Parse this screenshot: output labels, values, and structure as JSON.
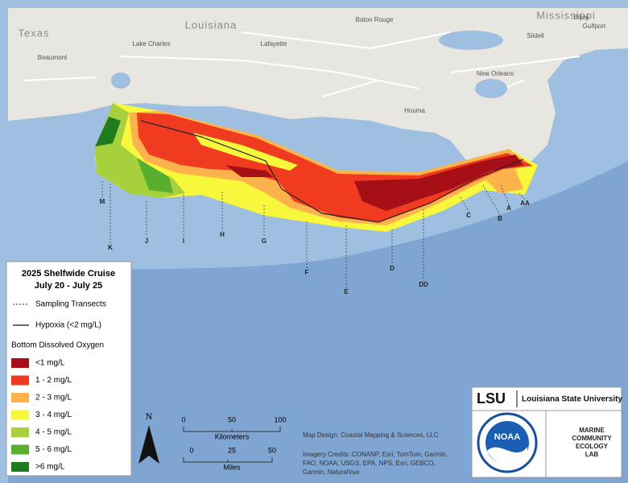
{
  "places": [
    {
      "label": "Texas"
    },
    {
      "label": "Louisiana"
    },
    {
      "label": "Mississippi"
    },
    {
      "label": "Baton Rouge"
    },
    {
      "label": "Lake Charles"
    },
    {
      "label": "Lafayette"
    },
    {
      "label": "Beaumont"
    },
    {
      "label": "Houma"
    },
    {
      "label": "New Orleans"
    },
    {
      "label": "Slidell"
    },
    {
      "label": "Biloxi"
    },
    {
      "label": "Gulfport"
    }
  ],
  "transects": [
    "M",
    "K",
    "J",
    "I",
    "H",
    "G",
    "F",
    "E",
    "D",
    "DD",
    "C",
    "B",
    "A",
    "AA"
  ],
  "legend": {
    "title": "2025 Shelfwide Cruise",
    "dates": "July 20 - July 25",
    "transect_label": "Sampling Transects",
    "hypoxia_label": "Hypoxia (<2 mg/L)",
    "oxygen_title": "Bottom Dissolved Oxygen",
    "classes": [
      {
        "label": "<1 mg/L",
        "color": "#a50f15"
      },
      {
        "label": "1 - 2 mg/L",
        "color": "#f03b20"
      },
      {
        "label": "2 - 3 mg/L",
        "color": "#feb24c"
      },
      {
        "label": "3 - 4 mg/L",
        "color": "#f7f73c"
      },
      {
        "label": "4 - 5 mg/L",
        "color": "#a6d13c"
      },
      {
        "label": "5 - 6 mg/L",
        "color": "#5aae2e"
      },
      {
        "label": ">6 mg/L",
        "color": "#1e7b1e"
      }
    ]
  },
  "north": "N",
  "scale_km": {
    "ticks": [
      "0",
      "50",
      "100"
    ],
    "unit": "Kilometers"
  },
  "scale_mi": {
    "ticks": [
      "0",
      "25",
      "50"
    ],
    "unit": "Miles"
  },
  "credits": {
    "design": "Map Design: Coastal Mapping & Sciences, LLC",
    "imagery": [
      "Imagery Credits: CONANP, Esri, TomTom, Garmin,",
      "FAO, NOAA, USGS, EPA, NPS, Esri, GEBCO,",
      "Garmin, NaturalVue"
    ]
  },
  "logos": {
    "lsu": "LSU",
    "lsu_name": "Louisiana State University",
    "noaa": "NOAA",
    "lab": [
      "MARINE",
      "COMMUNITY",
      "ECOLOGY",
      "LAB"
    ]
  }
}
